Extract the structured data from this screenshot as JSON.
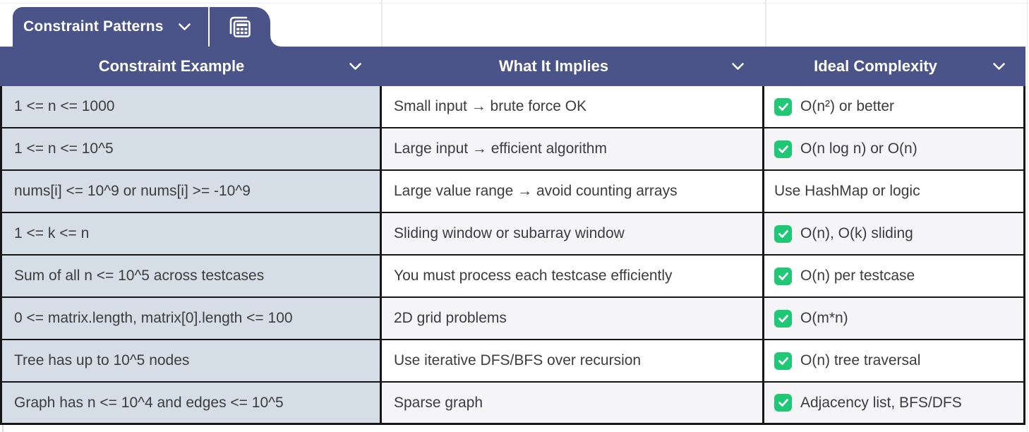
{
  "tab": {
    "title": "Constraint Patterns"
  },
  "header": {
    "columns": [
      "Constraint Example",
      "What It Implies",
      "Ideal Complexity"
    ]
  },
  "rows": [
    {
      "constraint": "1 <= n <= 1000",
      "implies": "Small input → brute force OK",
      "checked": true,
      "complexity": "O(n²) or better"
    },
    {
      "constraint": "1 <= n <= 10^5",
      "implies": "Large input → efficient algorithm",
      "checked": true,
      "complexity": "O(n log n) or O(n)"
    },
    {
      "constraint": "nums[i] <= 10^9 or nums[i] >= -10^9",
      "implies": "Large value range → avoid counting arrays",
      "checked": false,
      "complexity": "Use HashMap or logic"
    },
    {
      "constraint": "1 <= k <= n",
      "implies": "Sliding window or subarray window",
      "checked": true,
      "complexity": "O(n), O(k) sliding"
    },
    {
      "constraint": "Sum of all n <= 10^5 across testcases",
      "implies": "You must process each testcase efficiently",
      "checked": true,
      "complexity": "O(n) per testcase"
    },
    {
      "constraint": "0 <= matrix.length, matrix[0].length <= 100",
      "implies": "2D grid problems",
      "checked": true,
      "complexity": "O(m*n)"
    },
    {
      "constraint": "Tree has up to 10^5 nodes",
      "implies": "Use iterative DFS/BFS over recursion",
      "checked": true,
      "complexity": "O(n) tree traversal"
    },
    {
      "constraint": "Graph has n <= 10^4 and edges <= 10^5",
      "implies": "Sparse graph",
      "checked": true,
      "complexity": "Adjacency list, BFS/DFS"
    }
  ],
  "colors": {
    "header_bg": "#4a5489",
    "tab_bg": "#4a5489",
    "constraint_col_bg": "#d5dee7",
    "row_bg": "#ffffff",
    "row_alt_bg": "#f5f5f8",
    "check_green": "#1ec874",
    "border": "#161616",
    "body_text": "#3c3c3c",
    "header_text": "#ffffff"
  }
}
